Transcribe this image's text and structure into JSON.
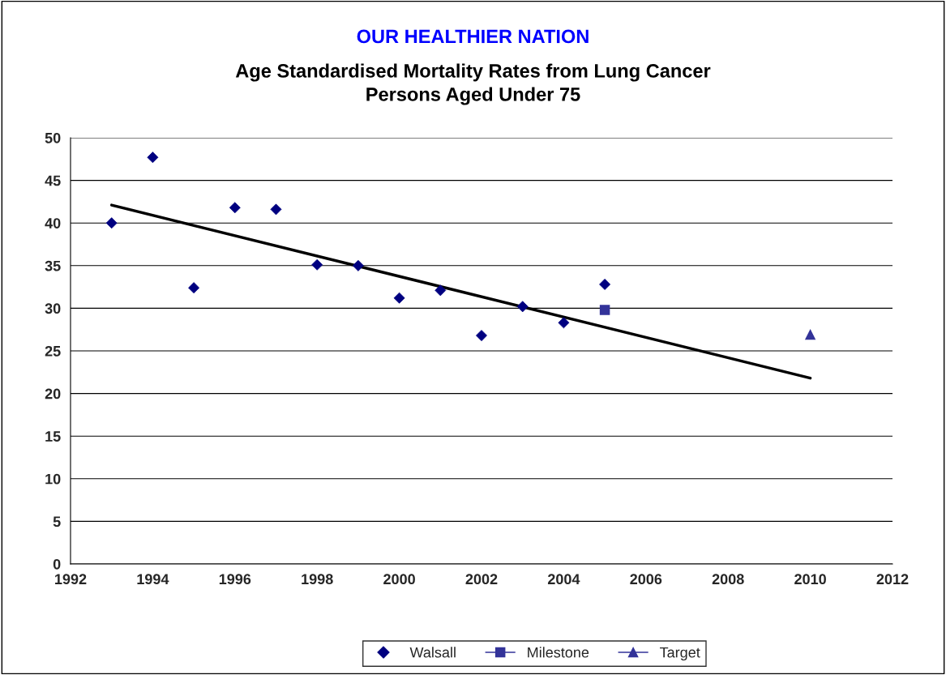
{
  "chart_data": {
    "type": "scatter",
    "title": "OUR HEALTHIER NATION",
    "subtitle": "Age Standardised Mortality Rates from Lung Cancer\nPersons Aged Under 75",
    "series": [
      {
        "name": "Walsall",
        "marker": "diamond",
        "color": "#000080",
        "x": [
          1993,
          1994,
          1995,
          1996,
          1997,
          1998,
          1999,
          2000,
          2001,
          2002,
          2003,
          2004,
          2005
        ],
        "values": [
          40.0,
          47.7,
          32.4,
          41.8,
          41.6,
          35.1,
          35.0,
          31.2,
          32.1,
          26.8,
          30.2,
          28.3,
          32.8
        ]
      },
      {
        "name": "Milestone",
        "type": "line",
        "marker": "square",
        "color": "#333399",
        "x": [
          2005
        ],
        "values": [
          29.8
        ]
      },
      {
        "name": "Target",
        "type": "line",
        "marker": "triangle",
        "color": "#333399",
        "x": [
          2010
        ],
        "values": [
          26.9
        ]
      },
      {
        "type": "line",
        "marker": "none",
        "color": "#000000",
        "x": [
          1993,
          2010
        ],
        "values": [
          42.1,
          21.8
        ]
      }
    ],
    "xlim": [
      1992,
      2012
    ],
    "xticks": [
      1992,
      1994,
      1996,
      1998,
      2000,
      2002,
      2004,
      2006,
      2008,
      2010,
      2012
    ],
    "ylim": [
      0,
      50
    ],
    "yticks": [
      0,
      5,
      10,
      15,
      20,
      25,
      30,
      35,
      40,
      45,
      50
    ],
    "grid": "y",
    "legend": "bottom"
  }
}
